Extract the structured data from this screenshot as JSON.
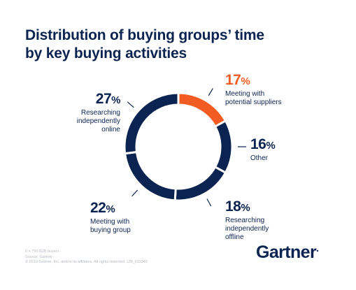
{
  "title_lines": [
    "Distribution of buying groups’ time",
    "by key buying activities"
  ],
  "chart_data": {
    "type": "pie",
    "variant": "donut",
    "start": "12 o'clock",
    "direction": "clockwise",
    "slices": [
      {
        "value": 17,
        "label": "17%",
        "name": "Meeting with\npotential suppliers",
        "color": "#f25c22",
        "percent_sign": "%"
      },
      {
        "value": 16,
        "label": "16%",
        "name": "Other",
        "color": "#0b2350"
      },
      {
        "value": 18,
        "label": "18%",
        "name": "Researching\nindependently\noffline",
        "color": "#0b2350"
      },
      {
        "value": 22,
        "label": "22%",
        "name": "Meeting with\nbuying group",
        "color": "#0b2350"
      },
      {
        "value": 27,
        "label": "27%",
        "name": "Researching\nindependently\nonline",
        "color": "#0b2350"
      }
    ]
  },
  "labels": {
    "s17": {
      "num": "17",
      "sym": "%",
      "desc": "Meeting with\npotential suppliers"
    },
    "s16": {
      "num": "16",
      "sym": "%",
      "desc": "Other"
    },
    "s18": {
      "num": "18",
      "sym": "%",
      "desc": "Researching\nindependently\noffline"
    },
    "s22": {
      "num": "22",
      "sym": "%",
      "desc": "Meeting with\nbuying group"
    },
    "s27": {
      "num": "27",
      "sym": "%",
      "desc": "Researching\nindependently\nonline"
    }
  },
  "footnote": [
    "n = 750 B2B buyers",
    "Source: Gartner",
    "© 2019 Gartner, Inc. and/or its affiliates. All rights reserved. CM_611049"
  ],
  "logo": {
    "text": "Gartner",
    "mark": "."
  },
  "colors": {
    "navy": "#0b2350",
    "orange": "#f25c22",
    "gap": "#ffffff"
  }
}
